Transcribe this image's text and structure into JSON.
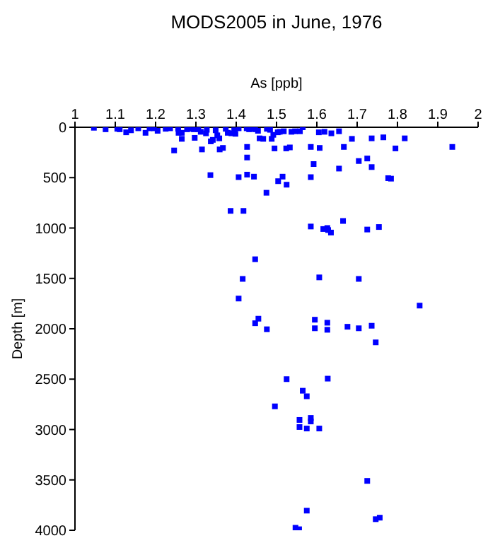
{
  "chart_data": {
    "type": "scatter",
    "title": "MODS2005 in June, 1976",
    "xlabel": "As [ppb]",
    "ylabel": "Depth [m]",
    "xlim": [
      1,
      2
    ],
    "xticks": [
      1,
      1.1,
      1.2,
      1.3,
      1.4,
      1.5,
      1.6,
      1.7,
      1.8,
      1.9,
      2
    ],
    "ylim": [
      4000,
      0
    ],
    "yticks": [
      0,
      500,
      1000,
      1500,
      2000,
      2500,
      3000,
      3500,
      4000
    ],
    "grid": false,
    "legend": false,
    "marker": "square",
    "series": [
      {
        "color": "#0000ff",
        "x": [
          1.047,
          1.076,
          1.105,
          1.111,
          1.127,
          1.139,
          1.157,
          1.175,
          1.185,
          1.196,
          1.205,
          1.225,
          1.236,
          1.246,
          1.256,
          1.257,
          1.265,
          1.265,
          1.278,
          1.287,
          1.295,
          1.297,
          1.306,
          1.312,
          1.315,
          1.325,
          1.327,
          1.337,
          1.342,
          1.349,
          1.353,
          1.358,
          1.359,
          1.367,
          1.374,
          1.379,
          1.388,
          1.395,
          1.398,
          1.406,
          1.426,
          1.427,
          1.427,
          1.432,
          1.441,
          1.447,
          1.454,
          1.458,
          1.467,
          1.476,
          1.484,
          1.488,
          1.492,
          1.495,
          1.503,
          1.508,
          1.518,
          1.524,
          1.533,
          1.537,
          1.546,
          1.558,
          1.565,
          1.585,
          1.592,
          1.605,
          1.607,
          1.619,
          1.636,
          1.655,
          1.655,
          1.667,
          1.687,
          1.704,
          1.725,
          1.736,
          1.736,
          1.765,
          1.795,
          1.818,
          1.936,
          1.336,
          1.406,
          1.427,
          1.444,
          1.475,
          1.504,
          1.515,
          1.525,
          1.585,
          1.777,
          1.784,
          1.386,
          1.418,
          1.585,
          1.616,
          1.626,
          1.628,
          1.635,
          1.665,
          1.725,
          1.754,
          1.447,
          1.416,
          1.606,
          1.704,
          1.406,
          1.855,
          1.455,
          1.447,
          1.476,
          1.595,
          1.595,
          1.626,
          1.626,
          1.676,
          1.704,
          1.736,
          1.746,
          1.525,
          1.627,
          1.565,
          1.575,
          1.496,
          1.557,
          1.585,
          1.585,
          1.557,
          1.575,
          1.606,
          1.725,
          1.575,
          1.746,
          1.756,
          1.547,
          1.556
        ],
        "values": [
          5,
          20,
          15,
          20,
          50,
          30,
          10,
          55,
          10,
          10,
          35,
          15,
          10,
          230,
          15,
          55,
          55,
          115,
          20,
          15,
          20,
          105,
          20,
          45,
          220,
          60,
          25,
          140,
          125,
          30,
          80,
          110,
          220,
          205,
          15,
          55,
          60,
          30,
          65,
          10,
          10,
          195,
          300,
          20,
          15,
          20,
          35,
          110,
          115,
          15,
          25,
          115,
          75,
          210,
          50,
          45,
          40,
          210,
          200,
          45,
          40,
          40,
          0,
          195,
          365,
          50,
          205,
          45,
          60,
          40,
          410,
          195,
          115,
          335,
          310,
          110,
          395,
          100,
          210,
          110,
          195,
          475,
          495,
          470,
          490,
          650,
          535,
          490,
          570,
          495,
          505,
          510,
          830,
          830,
          985,
          1010,
          1000,
          1020,
          1045,
          930,
          1015,
          990,
          1310,
          1505,
          1490,
          1505,
          1700,
          1770,
          1900,
          1945,
          2005,
          1910,
          1995,
          1940,
          2010,
          1980,
          1995,
          1970,
          2135,
          2500,
          2495,
          2615,
          2670,
          2770,
          2905,
          2885,
          2920,
          2975,
          2990,
          2990,
          3510,
          3805,
          3890,
          3875,
          3975,
          3990
        ]
      }
    ]
  }
}
